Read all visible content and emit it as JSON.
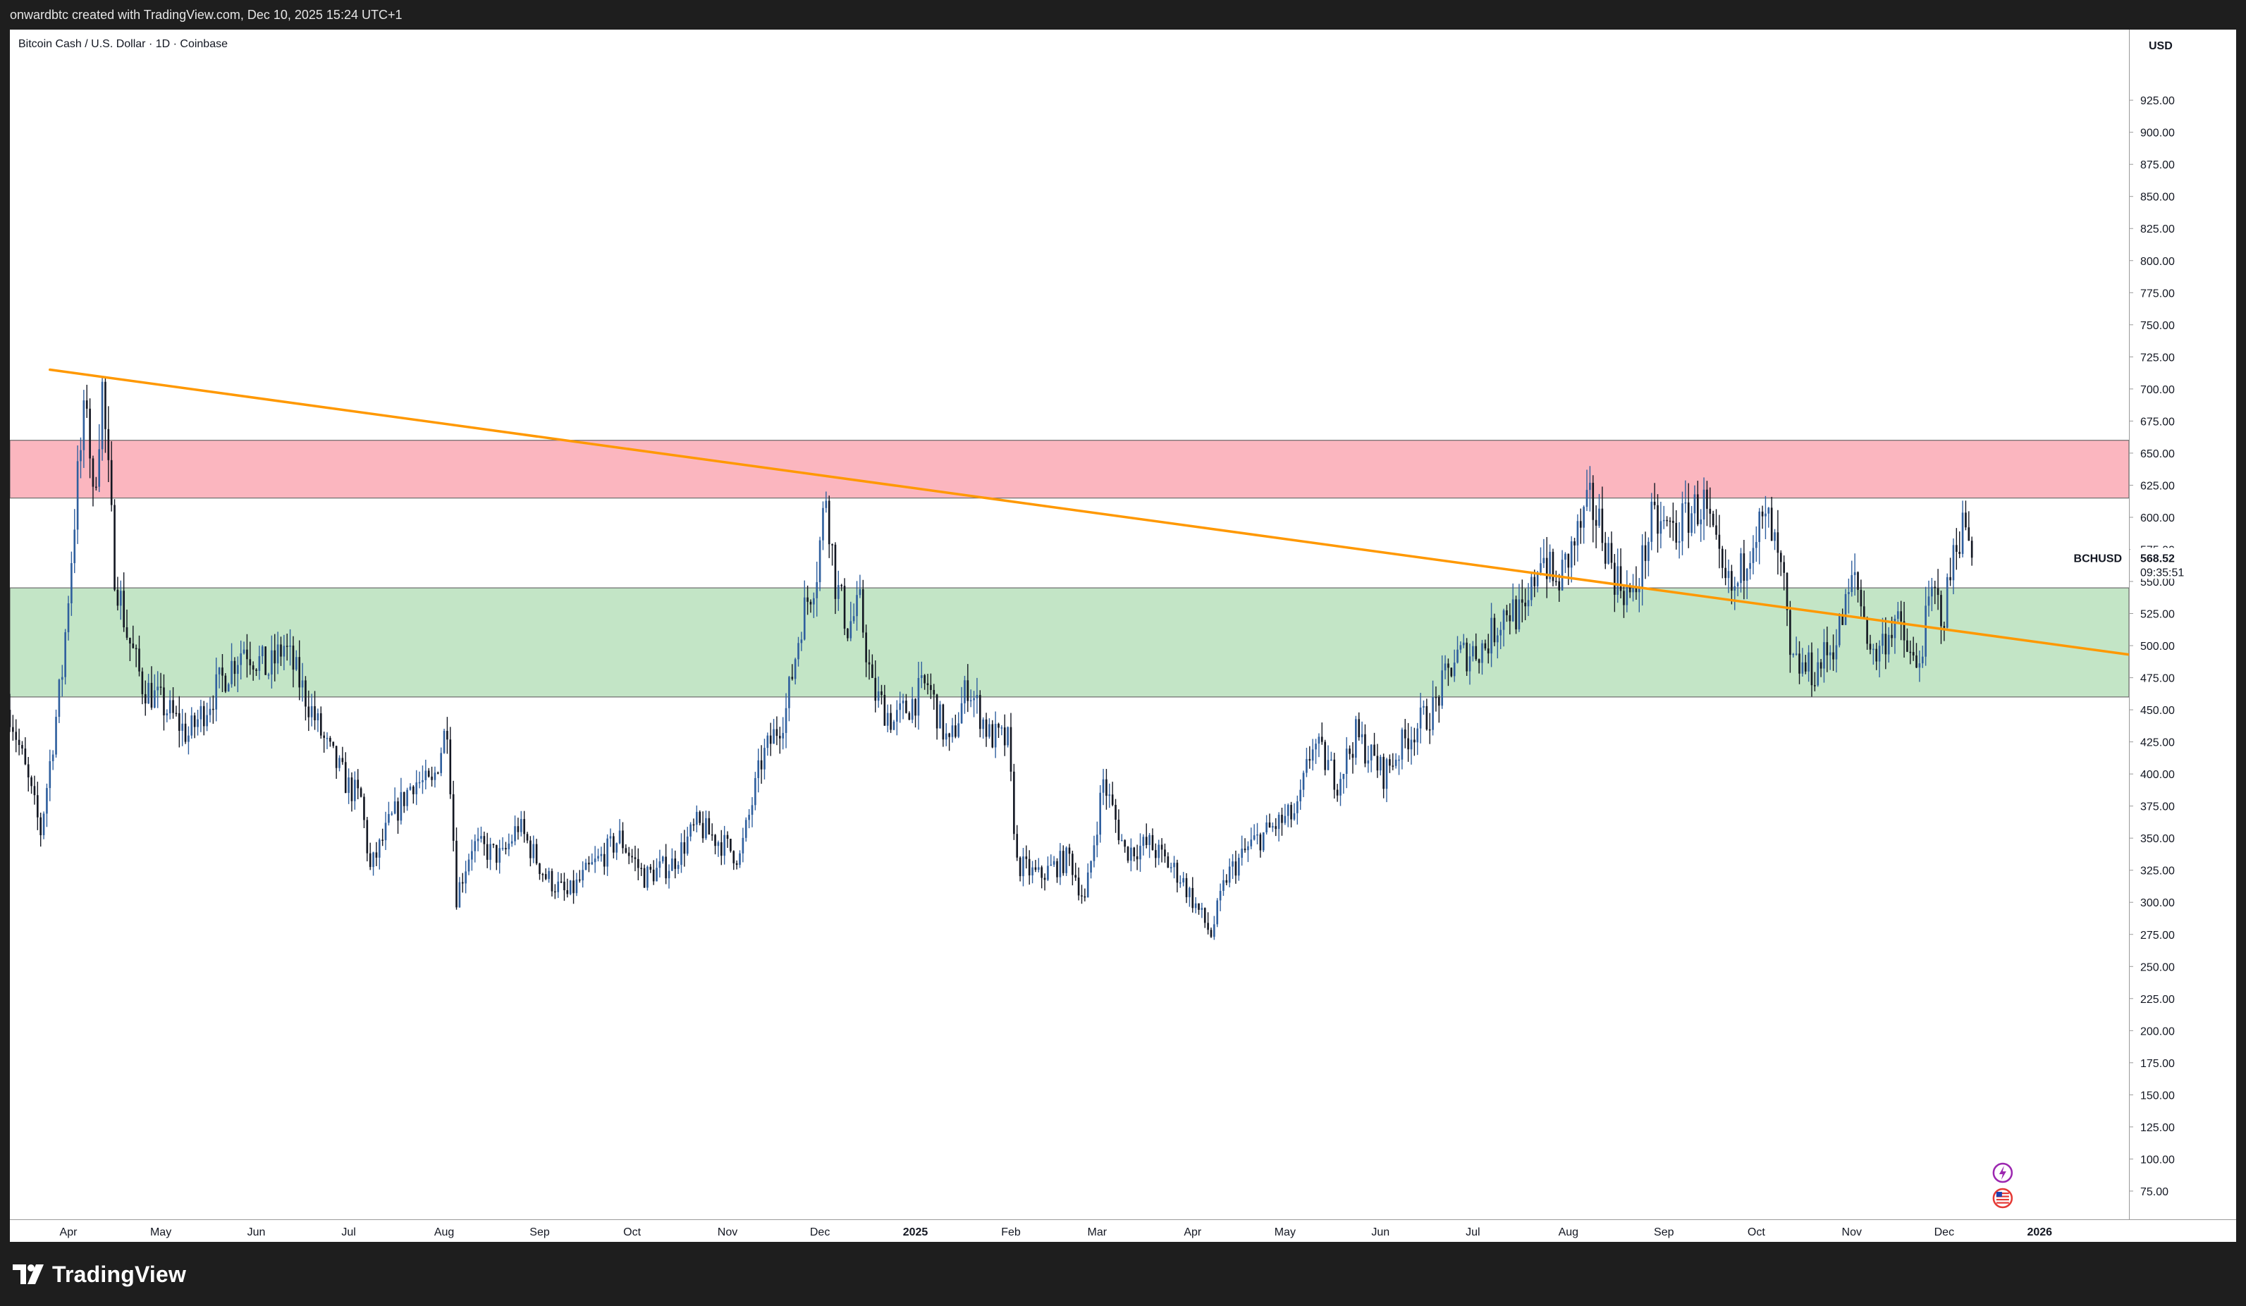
{
  "header": {
    "caption": "onwardbtc created with TradingView.com, Dec 10, 2025 15:24 UTC+1"
  },
  "chart_title": "Bitcoin Cash / U.S. Dollar · 1D · Coinbase",
  "brand": {
    "logo_text": "TradingView"
  },
  "colors": {
    "up_candle": "#2f5f9e",
    "down_candle": "#131722",
    "trendline": "#ff9800",
    "resistance_zone": "#fbb6bf",
    "support_zone": "#c3e5c6",
    "price_line": "#131722"
  },
  "chart_data": {
    "type": "candlestick",
    "symbol": "BCHUSD",
    "currency_label": "USD",
    "last_price_label": "568.52",
    "countdown_label": "09:35:51",
    "y_ticks": [
      "75.00",
      "100.00",
      "125.00",
      "150.00",
      "175.00",
      "200.00",
      "225.00",
      "250.00",
      "275.00",
      "300.00",
      "325.00",
      "350.00",
      "375.00",
      "400.00",
      "425.00",
      "450.00",
      "475.00",
      "500.00",
      "525.00",
      "550.00",
      "575.00",
      "600.00",
      "625.00",
      "650.00",
      "675.00",
      "700.00",
      "725.00",
      "750.00",
      "775.00",
      "800.00",
      "825.00",
      "850.00",
      "875.00",
      "900.00",
      "925.00"
    ],
    "ylim": [
      53,
      980
    ],
    "x_range": [
      "2024-03-13",
      "2026-01-30"
    ],
    "x_ticks": [
      {
        "label": "Apr",
        "date": "2024-04-01"
      },
      {
        "label": "May",
        "date": "2024-05-01"
      },
      {
        "label": "Jun",
        "date": "2024-06-01"
      },
      {
        "label": "Jul",
        "date": "2024-07-01"
      },
      {
        "label": "Aug",
        "date": "2024-08-01"
      },
      {
        "label": "Sep",
        "date": "2024-09-01"
      },
      {
        "label": "Oct",
        "date": "2024-10-01"
      },
      {
        "label": "Nov",
        "date": "2024-11-01"
      },
      {
        "label": "Dec",
        "date": "2024-12-01"
      },
      {
        "label": "2025",
        "date": "2025-01-01",
        "bold": true
      },
      {
        "label": "Feb",
        "date": "2025-02-01"
      },
      {
        "label": "Mar",
        "date": "2025-03-01"
      },
      {
        "label": "Apr",
        "date": "2025-04-01"
      },
      {
        "label": "May",
        "date": "2025-05-01"
      },
      {
        "label": "Jun",
        "date": "2025-06-01"
      },
      {
        "label": "Jul",
        "date": "2025-07-01"
      },
      {
        "label": "Aug",
        "date": "2025-08-01"
      },
      {
        "label": "Sep",
        "date": "2025-09-01"
      },
      {
        "label": "Oct",
        "date": "2025-10-01"
      },
      {
        "label": "Nov",
        "date": "2025-11-01"
      },
      {
        "label": "Dec",
        "date": "2025-12-01"
      },
      {
        "label": "2026",
        "date": "2026-01-01",
        "bold": true
      }
    ],
    "price_path": [
      [
        "2024-03-13",
        450
      ],
      [
        "2024-03-23",
        355
      ],
      [
        "2024-03-30",
        480
      ],
      [
        "2024-04-04",
        630
      ],
      [
        "2024-04-07",
        695
      ],
      [
        "2024-04-09",
        610
      ],
      [
        "2024-04-12",
        700
      ],
      [
        "2024-04-16",
        560
      ],
      [
        "2024-04-20",
        510
      ],
      [
        "2024-04-25",
        470
      ],
      [
        "2024-05-03",
        450
      ],
      [
        "2024-05-10",
        430
      ],
      [
        "2024-05-20",
        470
      ],
      [
        "2024-05-28",
        500
      ],
      [
        "2024-06-05",
        480
      ],
      [
        "2024-06-10",
        500
      ],
      [
        "2024-06-18",
        455
      ],
      [
        "2024-06-24",
        420
      ],
      [
        "2024-07-01",
        390
      ],
      [
        "2024-07-05",
        380
      ],
      [
        "2024-07-08",
        325
      ],
      [
        "2024-07-14",
        360
      ],
      [
        "2024-07-22",
        395
      ],
      [
        "2024-07-28",
        390
      ],
      [
        "2024-08-02",
        440
      ],
      [
        "2024-08-05",
        305
      ],
      [
        "2024-08-10",
        345
      ],
      [
        "2024-08-20",
        335
      ],
      [
        "2024-08-25",
        360
      ],
      [
        "2024-09-03",
        320
      ],
      [
        "2024-09-10",
        305
      ],
      [
        "2024-09-17",
        325
      ],
      [
        "2024-09-27",
        350
      ],
      [
        "2024-10-05",
        320
      ],
      [
        "2024-10-14",
        330
      ],
      [
        "2024-10-22",
        360
      ],
      [
        "2024-10-28",
        350
      ],
      [
        "2024-11-05",
        335
      ],
      [
        "2024-11-12",
        410
      ],
      [
        "2024-11-20",
        450
      ],
      [
        "2024-11-25",
        520
      ],
      [
        "2024-11-30",
        560
      ],
      [
        "2024-12-03",
        620
      ],
      [
        "2024-12-06",
        550
      ],
      [
        "2024-12-10",
        515
      ],
      [
        "2024-12-14",
        530
      ],
      [
        "2024-12-18",
        465
      ],
      [
        "2024-12-25",
        440
      ],
      [
        "2025-01-05",
        470
      ],
      [
        "2025-01-12",
        420
      ],
      [
        "2025-01-18",
        470
      ],
      [
        "2025-01-25",
        430
      ],
      [
        "2025-01-31",
        425
      ],
      [
        "2025-02-03",
        330
      ],
      [
        "2025-02-10",
        320
      ],
      [
        "2025-02-20",
        335
      ],
      [
        "2025-02-25",
        300
      ],
      [
        "2025-03-03",
        395
      ],
      [
        "2025-03-10",
        340
      ],
      [
        "2025-03-18",
        345
      ],
      [
        "2025-03-28",
        320
      ],
      [
        "2025-04-07",
        275
      ],
      [
        "2025-04-12",
        320
      ],
      [
        "2025-04-20",
        345
      ],
      [
        "2025-04-28",
        360
      ],
      [
        "2025-05-05",
        370
      ],
      [
        "2025-05-10",
        425
      ],
      [
        "2025-05-18",
        395
      ],
      [
        "2025-05-24",
        430
      ],
      [
        "2025-06-02",
        400
      ],
      [
        "2025-06-10",
        430
      ],
      [
        "2025-06-18",
        450
      ],
      [
        "2025-06-25",
        490
      ],
      [
        "2025-07-05",
        500
      ],
      [
        "2025-07-12",
        530
      ],
      [
        "2025-07-18",
        520
      ],
      [
        "2025-07-23",
        575
      ],
      [
        "2025-07-28",
        545
      ],
      [
        "2025-08-03",
        580
      ],
      [
        "2025-08-08",
        610
      ],
      [
        "2025-08-12",
        590
      ],
      [
        "2025-08-16",
        555
      ],
      [
        "2025-08-22",
        535
      ],
      [
        "2025-08-28",
        595
      ],
      [
        "2025-09-05",
        590
      ],
      [
        "2025-09-10",
        605
      ],
      [
        "2025-09-14",
        610
      ],
      [
        "2025-09-20",
        550
      ],
      [
        "2025-09-24",
        540
      ],
      [
        "2025-09-30",
        590
      ],
      [
        "2025-10-05",
        595
      ],
      [
        "2025-10-10",
        545
      ],
      [
        "2025-10-12",
        485
      ],
      [
        "2025-10-20",
        480
      ],
      [
        "2025-10-27",
        505
      ],
      [
        "2025-11-02",
        555
      ],
      [
        "2025-11-08",
        490
      ],
      [
        "2025-11-15",
        520
      ],
      [
        "2025-11-22",
        480
      ],
      [
        "2025-11-27",
        540
      ],
      [
        "2025-12-01",
        525
      ],
      [
        "2025-12-05",
        585
      ],
      [
        "2025-12-08",
        595
      ],
      [
        "2025-12-10",
        568.52
      ]
    ],
    "annotations": {
      "trendline": {
        "start": [
          "2024-03-26",
          715
        ],
        "end": [
          "2026-01-30",
          493
        ]
      },
      "resistance_zone": {
        "top": 660,
        "bottom": 615
      },
      "support_zone": {
        "top": 545,
        "bottom": 460
      }
    }
  }
}
